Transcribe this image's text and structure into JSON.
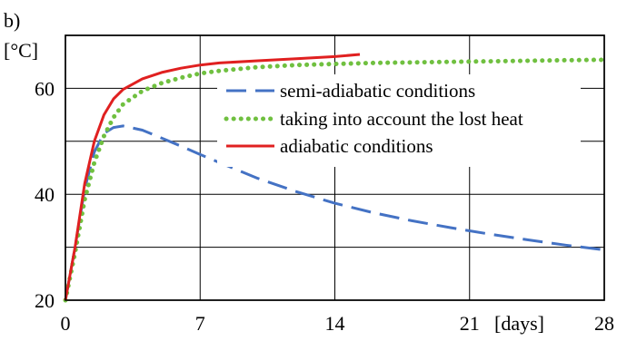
{
  "chart_data": {
    "type": "line",
    "panel_label": "b)",
    "ylabel": "[°C]",
    "xlabel": "[days]",
    "xlim": [
      0,
      28
    ],
    "ylim": [
      20,
      70
    ],
    "xticks": [
      0,
      7,
      14,
      21,
      28
    ],
    "yticks": [
      20,
      40,
      60
    ],
    "grid": true,
    "legend_placement": "center-right",
    "series": [
      {
        "name": "semi-adiabatic conditions",
        "color": "#4472C4",
        "style": "dashed",
        "x": [
          0,
          0.5,
          1,
          1.5,
          2,
          2.5,
          3,
          4,
          5,
          6,
          7,
          8,
          10,
          12,
          14,
          16,
          18,
          20,
          22,
          24,
          26,
          28
        ],
        "y": [
          20,
          30,
          41,
          48,
          51.5,
          52.6,
          52.9,
          52.1,
          50.6,
          49.1,
          47.5,
          46,
          43,
          40.5,
          38.3,
          36.5,
          35,
          33.7,
          32.5,
          31.4,
          30.4,
          29.5
        ]
      },
      {
        "name": "taking into account the lost heat",
        "color": "#70C040",
        "style": "dotted",
        "x": [
          0,
          0.5,
          1,
          1.5,
          2,
          2.5,
          3,
          4,
          5,
          6,
          7,
          8,
          10,
          12,
          14,
          16,
          18,
          20,
          22,
          24,
          26,
          28
        ],
        "y": [
          20,
          29,
          39,
          46,
          51,
          54.5,
          57,
          59.5,
          61,
          62,
          62.8,
          63.3,
          64,
          64.4,
          64.6,
          64.8,
          64.9,
          65,
          65.1,
          65.2,
          65.3,
          65.4
        ]
      },
      {
        "name": "adiabatic conditions",
        "color": "#E02020",
        "style": "solid",
        "x": [
          0,
          0.5,
          1,
          1.5,
          2,
          2.5,
          3,
          4,
          5,
          6,
          7,
          8,
          10,
          12,
          14,
          15.3
        ],
        "y": [
          20,
          30,
          42,
          50,
          55,
          58,
          59.8,
          61.8,
          63,
          63.8,
          64.4,
          64.8,
          65.2,
          65.6,
          66,
          66.4
        ]
      }
    ]
  }
}
